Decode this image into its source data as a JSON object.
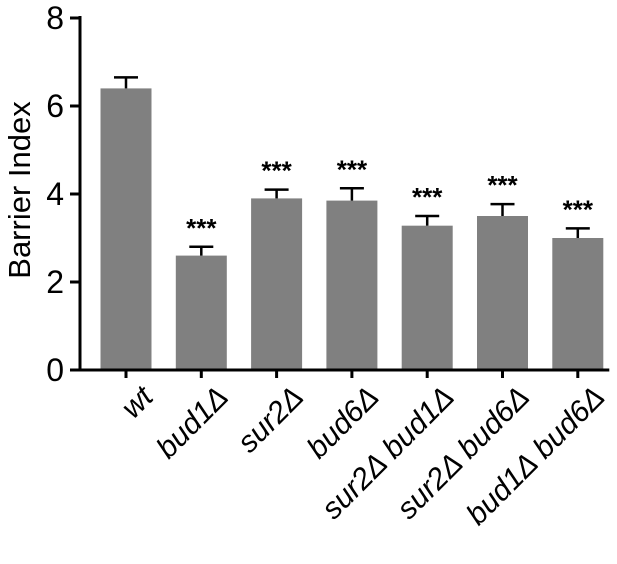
{
  "chart_data": {
    "type": "bar",
    "title": "",
    "xlabel": "",
    "ylabel": "Barrier Index",
    "ylim": [
      0,
      8
    ],
    "yticks": [
      "0",
      "2",
      "4",
      "6",
      "8"
    ],
    "categories": [
      "wt",
      "bud1Δ",
      "sur2Δ",
      "bud6Δ",
      "sur2Δ bud1Δ",
      "sur2Δ bud6Δ",
      "bud1Δ bud6Δ"
    ],
    "values": [
      6.4,
      2.6,
      3.9,
      3.85,
      3.28,
      3.5,
      3.0
    ],
    "errors": [
      0.25,
      0.2,
      0.2,
      0.28,
      0.22,
      0.27,
      0.22
    ],
    "significance": [
      "",
      "***",
      "***",
      "***",
      "***",
      "***",
      "***"
    ],
    "bar_color": "#808080",
    "grid": false,
    "legend": "none"
  }
}
